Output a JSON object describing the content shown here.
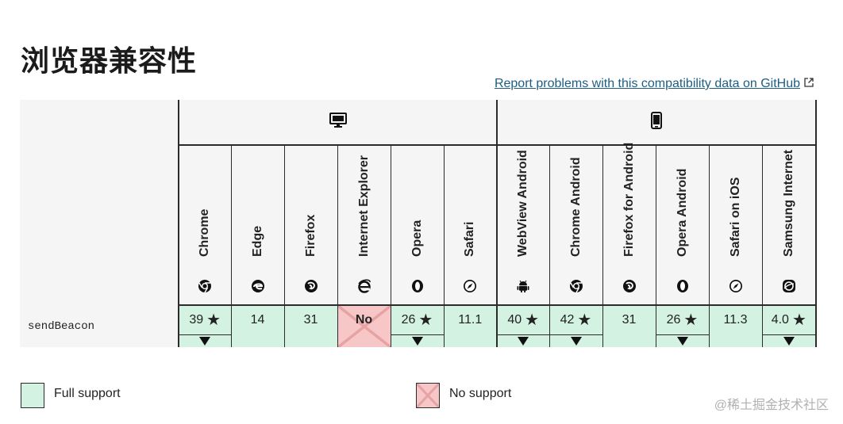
{
  "page": {
    "title": "浏览器兼容性",
    "report_link": "Report problems with this compatibility data on GitHub"
  },
  "platforms": [
    {
      "name": "desktop-icon"
    },
    {
      "name": "mobile-icon"
    }
  ],
  "browsers": [
    {
      "label": "Chrome",
      "icon": "chrome-icon"
    },
    {
      "label": "Edge",
      "icon": "edge-icon"
    },
    {
      "label": "Firefox",
      "icon": "firefox-icon"
    },
    {
      "label": "Internet Explorer",
      "icon": "ie-icon"
    },
    {
      "label": "Opera",
      "icon": "opera-icon"
    },
    {
      "label": "Safari",
      "icon": "safari-icon"
    },
    {
      "label": "WebView Android",
      "icon": "android-icon"
    },
    {
      "label": "Chrome Android",
      "icon": "chrome-icon"
    },
    {
      "label": "Firefox for Android",
      "icon": "firefox-icon"
    },
    {
      "label": "Opera Android",
      "icon": "opera-icon"
    },
    {
      "label": "Safari on iOS",
      "icon": "safari-icon"
    },
    {
      "label": "Samsung Internet",
      "icon": "samsung-icon"
    }
  ],
  "feature": {
    "name": "sendBeacon",
    "support": [
      {
        "value": "39",
        "status": "yes",
        "notes": true
      },
      {
        "value": "14",
        "status": "yes",
        "notes": false
      },
      {
        "value": "31",
        "status": "yes",
        "notes": false
      },
      {
        "value": "No",
        "status": "no",
        "notes": false
      },
      {
        "value": "26",
        "status": "yes",
        "notes": true
      },
      {
        "value": "11.1",
        "status": "yes",
        "notes": false
      },
      {
        "value": "40",
        "status": "yes",
        "notes": true
      },
      {
        "value": "42",
        "status": "yes",
        "notes": true
      },
      {
        "value": "31",
        "status": "yes",
        "notes": false
      },
      {
        "value": "26",
        "status": "yes",
        "notes": true
      },
      {
        "value": "11.3",
        "status": "yes",
        "notes": false
      },
      {
        "value": "4.0",
        "status": "yes",
        "notes": true
      }
    ]
  },
  "legend": {
    "full_support": "Full support",
    "no_support": "No support"
  },
  "colors": {
    "full_support": "#d4f2e1",
    "no_support": "#f7c6c6",
    "link": "#1d5d82",
    "header_bg": "#f5f5f5"
  },
  "watermark": "@稀土掘金技术社区"
}
